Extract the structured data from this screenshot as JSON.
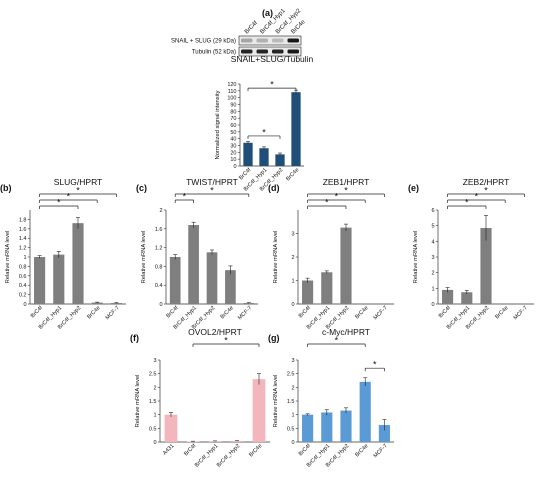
{
  "figure": {
    "top_panel_label": "(a)",
    "blot": {
      "lanes": [
        "BrC4f",
        "BrC4f_Hyp1",
        "BrC4f_Hyp2",
        "BrC4e"
      ],
      "rows": [
        "SNAIL + SLUG (29 kDa)",
        "Tubulin (52 kDa)"
      ],
      "snail_band_intensity": [
        0.3,
        0.25,
        0.2,
        0.95
      ],
      "tubulin_band_intensity": [
        0.9,
        0.9,
        0.9,
        0.95
      ]
    }
  },
  "chart_data": [
    {
      "id": "a",
      "panel_label": "",
      "type": "bar",
      "title": "SNAIL+SLUG/Tubulin",
      "ylabel": "Normalized signal intensity",
      "categories": [
        "BrC4f",
        "BrC4f_Hyp1",
        "BrC4f_Hyp2",
        "BrC4e"
      ],
      "values": [
        34,
        26,
        17,
        108
      ],
      "errors": [
        2,
        2,
        2,
        3
      ],
      "ylim": [
        0,
        120
      ],
      "yticks": [
        0,
        10,
        20,
        30,
        40,
        50,
        60,
        70,
        80,
        90,
        100,
        110,
        120
      ],
      "bar_colors": [
        "#1f4e79",
        "#1f4e79",
        "#1f4e79",
        "#1f4e79"
      ],
      "significance": [
        {
          "from": 0,
          "to": 3,
          "label": "*"
        },
        {
          "from": 0,
          "to": 2,
          "label": "*"
        }
      ]
    },
    {
      "id": "b",
      "panel_label": "(b)",
      "type": "bar",
      "title": "SLUG/HPRT",
      "ylabel": "Relative mRNA level",
      "categories": [
        "BrC4f",
        "BrC4f_Hyp1",
        "BrC4f_Hyp2",
        "BrC4e",
        "MCF-7"
      ],
      "values": [
        1.0,
        1.05,
        1.72,
        0.03,
        0.02
      ],
      "errors": [
        0.03,
        0.07,
        0.12,
        0.01,
        0.01
      ],
      "ylim": [
        0,
        2.0
      ],
      "yticks": [
        0,
        0.2,
        0.4,
        0.6,
        0.8,
        1,
        1.2,
        1.4,
        1.6,
        1.8
      ],
      "bar_colors": [
        "#7f7f7f",
        "#7f7f7f",
        "#7f7f7f",
        "#7f7f7f",
        "#7f7f7f"
      ],
      "significance": [
        {
          "from": 0,
          "to": 4,
          "label": "*"
        },
        {
          "from": 0,
          "to": 3,
          "label": "*"
        },
        {
          "from": 0,
          "to": 2,
          "label": "*"
        }
      ]
    },
    {
      "id": "c",
      "panel_label": "(c)",
      "type": "bar",
      "title": "TWIST/HPRT",
      "ylabel": "Relative mRNA level",
      "categories": [
        "BrC4f",
        "BrC4f_Hyp1",
        "BrC4f_Hyp2",
        "BrC4e",
        "MCF-7"
      ],
      "values": [
        1.0,
        1.68,
        1.1,
        0.72,
        0.02
      ],
      "errors": [
        0.05,
        0.06,
        0.05,
        0.09,
        0.01
      ],
      "ylim": [
        0,
        2.0
      ],
      "yticks": [
        0,
        0.4,
        0.8,
        1.2,
        1.6,
        2
      ],
      "bar_colors": [
        "#7f7f7f",
        "#7f7f7f",
        "#7f7f7f",
        "#7f7f7f",
        "#7f7f7f"
      ],
      "significance": [
        {
          "from": 0,
          "to": 4,
          "label": "*"
        },
        {
          "from": 0,
          "to": 1,
          "label": "*"
        }
      ]
    },
    {
      "id": "d",
      "panel_label": "(d)",
      "type": "bar",
      "title": "ZEB1/HPRT",
      "ylabel": "Relative mRNA level",
      "categories": [
        "BrC4f",
        "BrC4f_Hyp1",
        "BrC4f_Hyp2",
        "BrC4e",
        "MCF-7"
      ],
      "values": [
        1.0,
        1.35,
        3.25,
        0.0,
        0.0
      ],
      "errors": [
        0.1,
        0.06,
        0.15,
        0,
        0
      ],
      "ylim": [
        0,
        4
      ],
      "yticks": [
        0,
        1,
        2,
        3
      ],
      "bar_colors": [
        "#7f7f7f",
        "#7f7f7f",
        "#7f7f7f",
        "#7f7f7f",
        "#7f7f7f"
      ],
      "significance": [
        {
          "from": 0,
          "to": 4,
          "label": "*"
        },
        {
          "from": 0,
          "to": 3,
          "label": "*"
        },
        {
          "from": 0,
          "to": 2,
          "label": "*"
        }
      ]
    },
    {
      "id": "e",
      "panel_label": "(e)",
      "type": "bar",
      "title": "ZEB2/HPRT",
      "ylabel": "Relative mRNA level",
      "categories": [
        "BrC4f",
        "BrC4f_Hyp1",
        "BrC4f_Hyp2",
        "BrC4e",
        "MCF-7"
      ],
      "values": [
        0.9,
        0.75,
        4.85,
        0.0,
        0.0
      ],
      "errors": [
        0.15,
        0.12,
        0.8,
        0,
        0
      ],
      "ylim": [
        0,
        6
      ],
      "yticks": [
        0,
        1,
        2,
        3,
        4,
        5,
        6
      ],
      "bar_colors": [
        "#7f7f7f",
        "#7f7f7f",
        "#7f7f7f",
        "#7f7f7f",
        "#7f7f7f"
      ],
      "significance": [
        {
          "from": 0,
          "to": 4,
          "label": "*"
        },
        {
          "from": 0,
          "to": 3,
          "label": "*"
        },
        {
          "from": 0,
          "to": 2,
          "label": "*"
        }
      ]
    },
    {
      "id": "f",
      "panel_label": "(f)",
      "type": "bar",
      "title": "OVOL2/HPRT",
      "ylabel": "Relative mRNA level",
      "categories": [
        "A431",
        "BrC4f",
        "BrC4f_Hyp1",
        "BrC4f_Hyp2",
        "BrC4e"
      ],
      "values": [
        1.0,
        0.02,
        0.03,
        0.04,
        2.3
      ],
      "errors": [
        0.08,
        0.01,
        0.01,
        0.01,
        0.2
      ],
      "ylim": [
        0,
        3
      ],
      "yticks": [
        0,
        0.5,
        1,
        1.5,
        2,
        2.5,
        3
      ],
      "bar_colors": [
        "#f4b6bd",
        "#f4b6bd",
        "#f4b6bd",
        "#f4b6bd",
        "#f4b6bd"
      ],
      "significance": [
        {
          "from": 1,
          "to": 4,
          "label": "*"
        }
      ]
    },
    {
      "id": "g",
      "panel_label": "(g)",
      "type": "bar",
      "title": "c-Myc/HPRT",
      "ylabel": "Relative mRNA level",
      "categories": [
        "BrC4f",
        "BrC4f_Hyp1",
        "BrC4f_Hyp2",
        "BrC4e",
        "MCF-7"
      ],
      "values": [
        1.0,
        1.08,
        1.15,
        2.2,
        0.62
      ],
      "errors": [
        0.03,
        0.1,
        0.1,
        0.15,
        0.2
      ],
      "ylim": [
        0,
        3
      ],
      "yticks": [
        0,
        0.5,
        1,
        1.5,
        2,
        2.5,
        3
      ],
      "bar_colors": [
        "#5b9bd5",
        "#5b9bd5",
        "#5b9bd5",
        "#5b9bd5",
        "#5b9bd5"
      ],
      "significance": [
        {
          "from": 0,
          "to": 3,
          "label": "*"
        },
        {
          "from": 3,
          "to": 4,
          "label": "*"
        }
      ]
    }
  ]
}
